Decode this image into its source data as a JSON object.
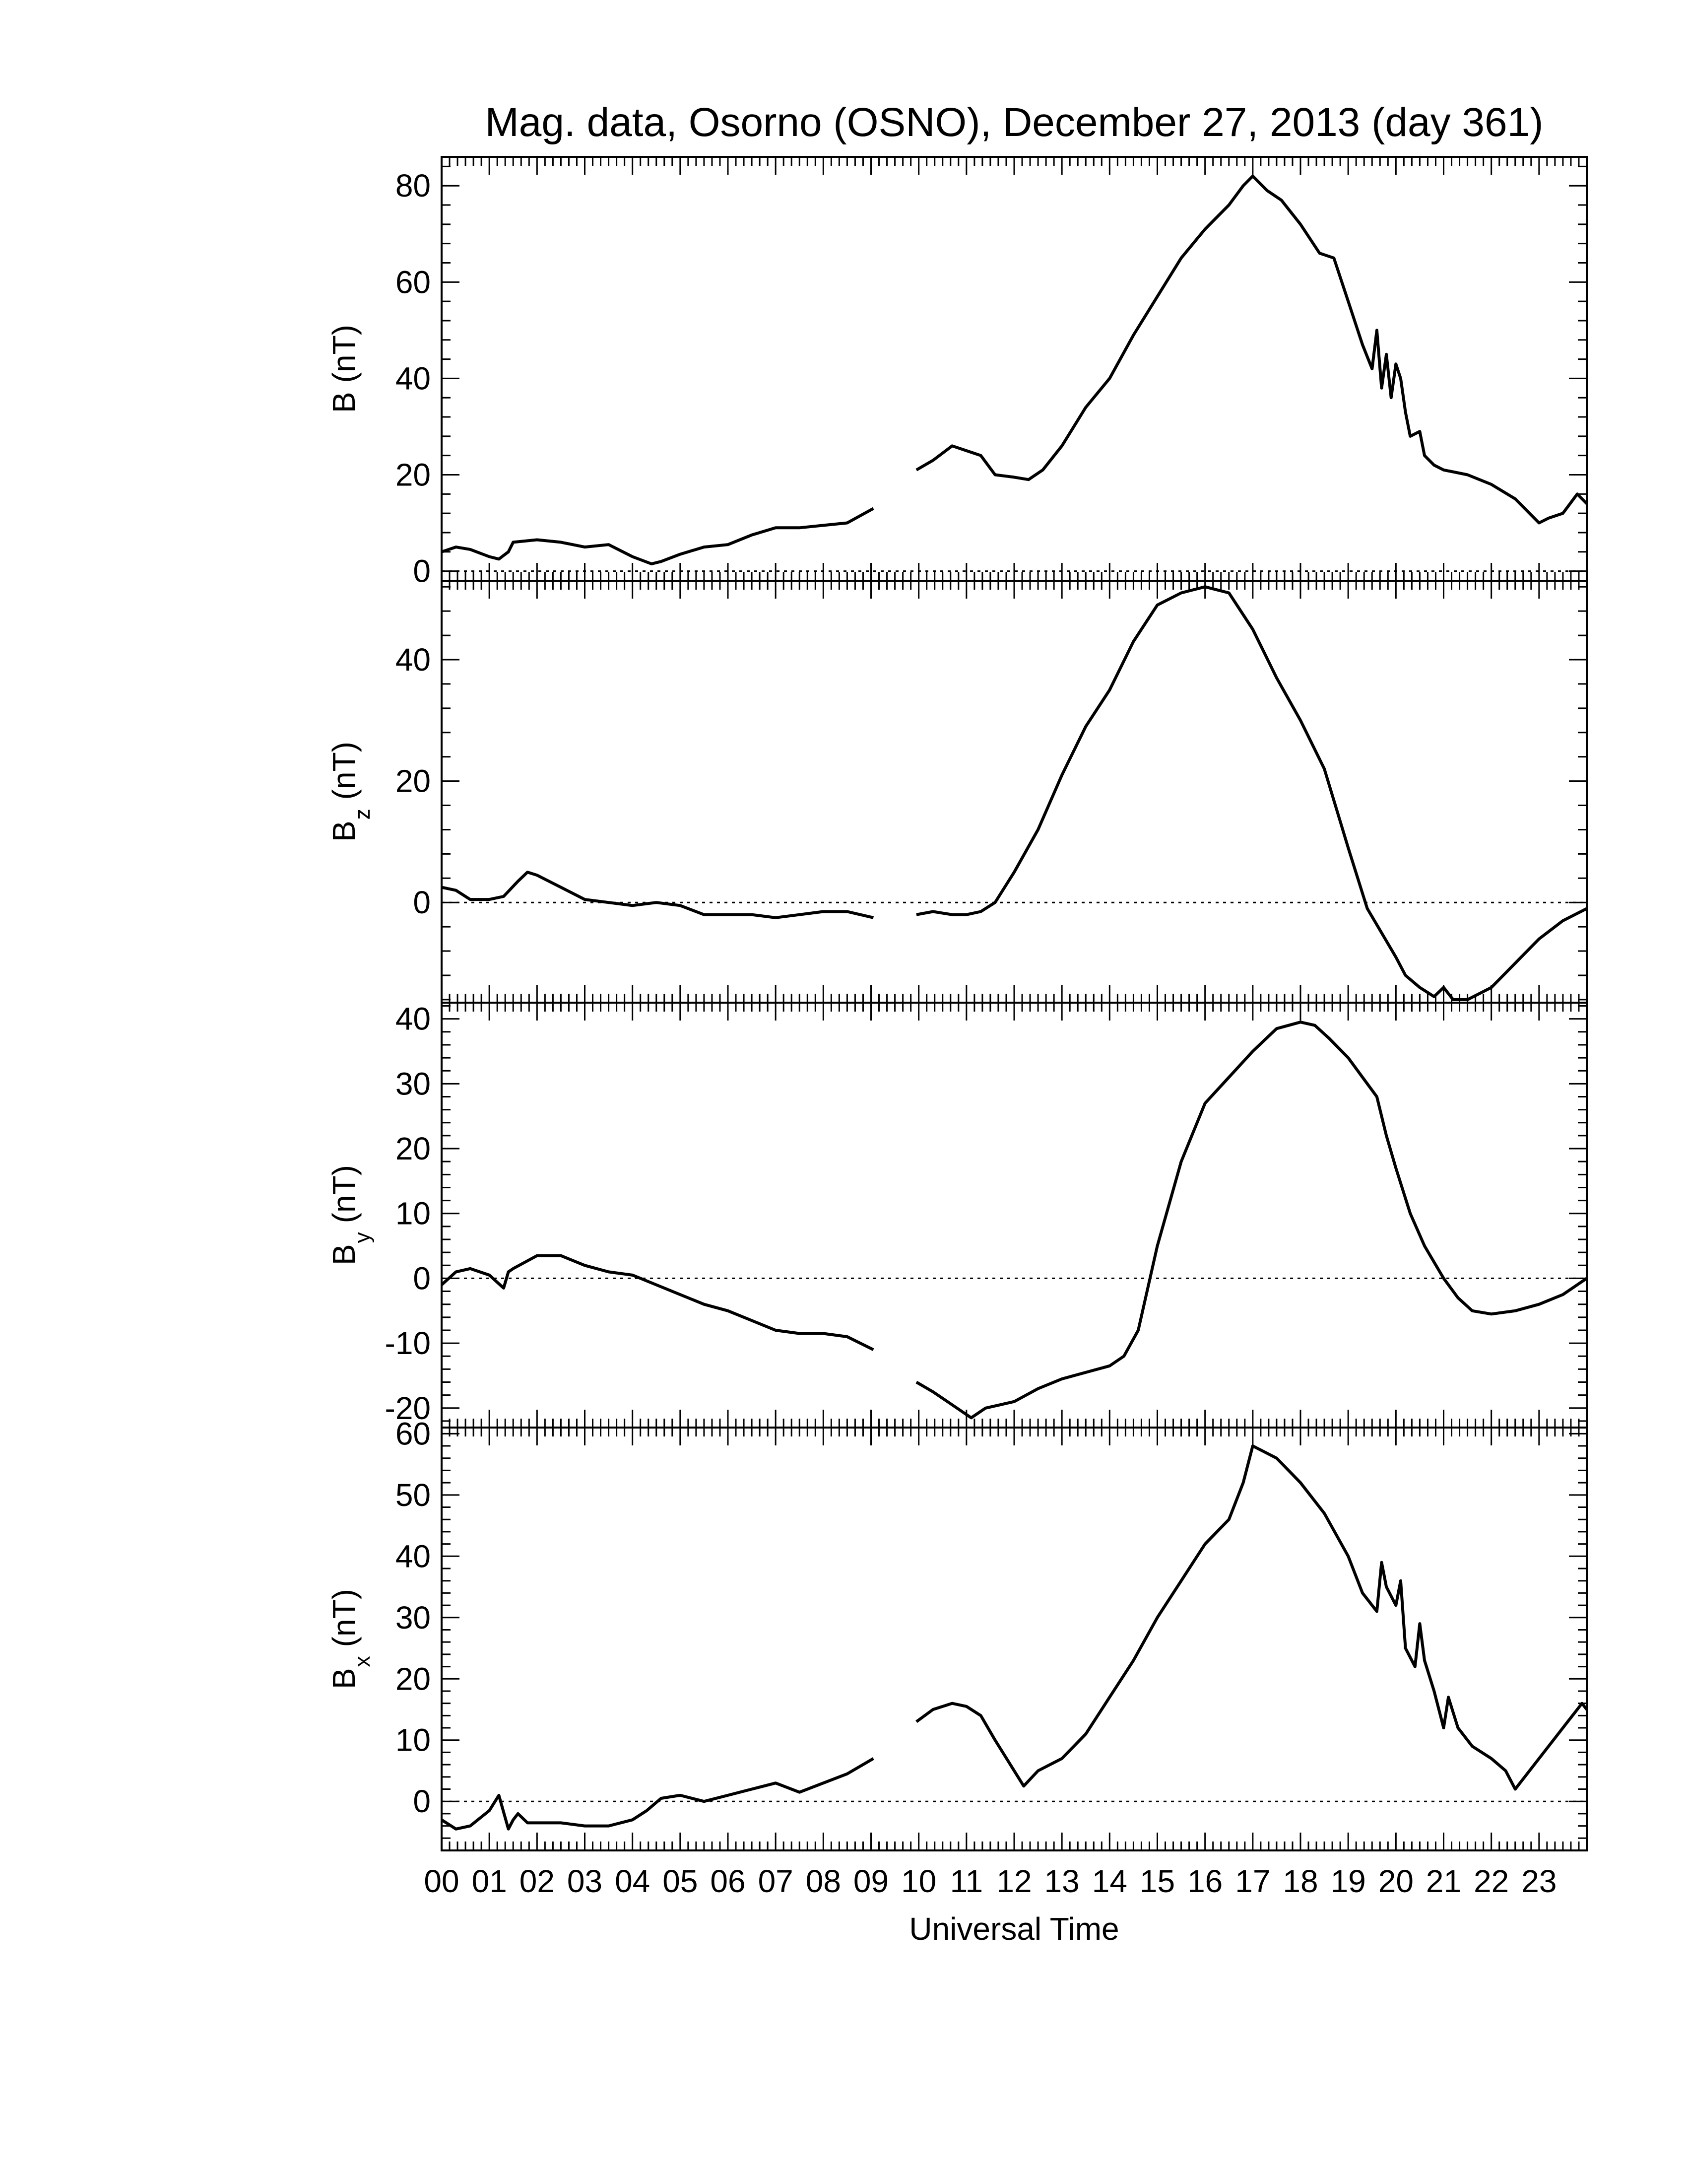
{
  "title": "Mag. data, Osorno (OSNO), December 27, 2013 (day 361)",
  "xlabel": "Universal Time",
  "x_tick_labels": [
    "00",
    "01",
    "02",
    "03",
    "04",
    "05",
    "06",
    "07",
    "08",
    "09",
    "10",
    "11",
    "12",
    "13",
    "14",
    "15",
    "16",
    "17",
    "18",
    "19",
    "20",
    "21",
    "22",
    "23"
  ],
  "chart_data": [
    {
      "type": "line",
      "ylabel_main": "B",
      "ylabel_sub": "",
      "ylabel_unit": "(nT)",
      "xlim": [
        0,
        24
      ],
      "ylim": [
        -2,
        86
      ],
      "yticks": [
        0,
        20,
        40,
        60,
        80
      ],
      "zero_line": true,
      "x": [
        0,
        0.3,
        0.6,
        1.0,
        1.2,
        1.4,
        1.5,
        2.0,
        2.5,
        3.0,
        3.5,
        4.0,
        4.4,
        4.6,
        5.0,
        5.5,
        6.0,
        6.5,
        7.0,
        7.5,
        8.0,
        8.5,
        9.05,
        null,
        9.95,
        10.3,
        10.7,
        11.0,
        11.3,
        11.6,
        12.0,
        12.3,
        12.6,
        13.0,
        13.5,
        14.0,
        14.5,
        15.0,
        15.5,
        16.0,
        16.5,
        16.8,
        17.0,
        17.3,
        17.6,
        18.0,
        18.4,
        18.7,
        19.0,
        19.3,
        19.5,
        19.6,
        19.7,
        19.8,
        19.9,
        20.0,
        20.1,
        20.2,
        20.3,
        20.5,
        20.6,
        20.8,
        21.0,
        21.5,
        22.0,
        22.5,
        22.8,
        23.0,
        23.2,
        23.5,
        23.8,
        24.0
      ],
      "values": [
        4,
        5,
        4.5,
        3,
        2.5,
        4,
        6,
        6.5,
        6,
        5,
        5.5,
        3,
        1.5,
        2,
        3.5,
        5,
        5.5,
        7.5,
        9,
        9,
        9.5,
        10,
        13,
        null,
        21,
        23,
        26,
        25,
        24,
        20,
        19.5,
        19,
        21,
        26,
        34,
        40,
        49,
        57,
        65,
        71,
        76,
        80,
        82,
        79,
        77,
        72,
        66,
        65,
        56,
        47,
        42,
        50,
        38,
        45,
        36,
        43,
        40,
        33,
        28,
        29,
        24,
        22,
        21,
        20,
        18,
        15,
        12,
        10,
        11,
        12,
        16,
        14
      ],
      "line_color": "#000000"
    },
    {
      "type": "line",
      "ylabel_main": "B",
      "ylabel_sub": "z",
      "ylabel_unit": "(nT)",
      "xlim": [
        0,
        24
      ],
      "ylim": [
        -16.5,
        53
      ],
      "yticks": [
        0,
        20,
        40
      ],
      "zero_line": true,
      "x": [
        0,
        0.3,
        0.6,
        1.0,
        1.3,
        1.6,
        1.8,
        2.0,
        2.5,
        3.0,
        3.5,
        4.0,
        4.5,
        5.0,
        5.5,
        6.0,
        6.5,
        7.0,
        7.5,
        8.0,
        8.5,
        9.05,
        null,
        9.95,
        10.3,
        10.7,
        11.0,
        11.3,
        11.6,
        12.0,
        12.5,
        13.0,
        13.5,
        14.0,
        14.5,
        15.0,
        15.5,
        16.0,
        16.5,
        17.0,
        17.5,
        18.0,
        18.5,
        19.0,
        19.4,
        19.7,
        20.0,
        20.2,
        20.5,
        20.8,
        21.0,
        21.2,
        21.5,
        22.0,
        22.5,
        23.0,
        23.5,
        24.0
      ],
      "values": [
        2.5,
        2,
        0.5,
        0.5,
        1,
        3.5,
        5,
        4.5,
        2.5,
        0.5,
        0,
        -0.5,
        0,
        -0.5,
        -2,
        -2,
        -2,
        -2.5,
        -2,
        -1.5,
        -1.5,
        -2.5,
        null,
        -2,
        -1.5,
        -2,
        -2,
        -1.5,
        0,
        5,
        12,
        21,
        29,
        35,
        43,
        49,
        51,
        52,
        51,
        45,
        37,
        30,
        22,
        9,
        -1,
        -5,
        -9,
        -12,
        -14,
        -15.5,
        -14,
        -16,
        -16,
        -14,
        -10,
        -6,
        -3,
        -1
      ],
      "line_color": "#000000"
    },
    {
      "type": "line",
      "ylabel_main": "B",
      "ylabel_sub": "y",
      "ylabel_unit": "(nT)",
      "xlim": [
        0,
        24
      ],
      "ylim": [
        -23,
        42.5
      ],
      "yticks": [
        -20,
        -10,
        0,
        10,
        20,
        30,
        40
      ],
      "zero_line": true,
      "x": [
        0,
        0.3,
        0.6,
        1.0,
        1.3,
        1.4,
        1.5,
        2.0,
        2.5,
        3.0,
        3.5,
        4.0,
        4.5,
        5.0,
        5.5,
        6.0,
        6.5,
        7.0,
        7.5,
        8.0,
        8.5,
        9.05,
        null,
        9.95,
        10.3,
        10.6,
        10.9,
        11.1,
        11.4,
        11.7,
        12.0,
        12.5,
        13.0,
        13.5,
        14.0,
        14.3,
        14.6,
        15.0,
        15.5,
        16.0,
        16.5,
        17.0,
        17.5,
        18.0,
        18.3,
        18.6,
        19.0,
        19.3,
        19.6,
        19.8,
        20.0,
        20.3,
        20.6,
        21.0,
        21.3,
        21.6,
        22.0,
        22.5,
        23.0,
        23.5,
        24.0
      ],
      "values": [
        -1,
        1,
        1.5,
        0.5,
        -1.5,
        1,
        1.5,
        3.5,
        3.5,
        2,
        1,
        0.5,
        -1,
        -2.5,
        -4,
        -5,
        -6.5,
        -8,
        -8.5,
        -8.5,
        -9,
        -11,
        null,
        -16,
        -17.5,
        -19,
        -20.5,
        -21.5,
        -20,
        -19.5,
        -19,
        -17,
        -15.5,
        -14.5,
        -13.5,
        -12,
        -8,
        5,
        18,
        27,
        31,
        35,
        38.5,
        39.5,
        39,
        37,
        34,
        31,
        28,
        22,
        17,
        10,
        5,
        0,
        -3,
        -5,
        -5.5,
        -5,
        -4,
        -2.5,
        0
      ],
      "line_color": "#000000"
    },
    {
      "type": "line",
      "ylabel_main": "B",
      "ylabel_sub": "x",
      "ylabel_unit": "(nT)",
      "xlim": [
        0,
        24
      ],
      "ylim": [
        -8,
        61
      ],
      "yticks": [
        0,
        10,
        20,
        30,
        40,
        50,
        60
      ],
      "zero_line": true,
      "x": [
        0,
        0.3,
        0.6,
        1.0,
        1.2,
        1.4,
        1.5,
        1.6,
        1.8,
        2.0,
        2.5,
        3.0,
        3.5,
        4.0,
        4.3,
        4.6,
        5.0,
        5.5,
        6.0,
        6.5,
        7.0,
        7.5,
        8.0,
        8.5,
        9.05,
        null,
        9.95,
        10.3,
        10.7,
        11.0,
        11.3,
        11.6,
        12.0,
        12.2,
        12.5,
        13.0,
        13.5,
        14.0,
        14.5,
        15.0,
        15.5,
        16.0,
        16.5,
        16.8,
        17.0,
        17.5,
        18.0,
        18.5,
        19.0,
        19.3,
        19.6,
        19.7,
        19.8,
        20.0,
        20.1,
        20.2,
        20.4,
        20.5,
        20.6,
        20.8,
        21.0,
        21.1,
        21.3,
        21.6,
        22.0,
        22.3,
        22.5,
        22.7,
        23.0,
        23.3,
        23.6,
        23.9,
        24.0
      ],
      "values": [
        -3,
        -4.5,
        -4,
        -1.5,
        1,
        -4.5,
        -3,
        -2,
        -3.5,
        -3.5,
        -3.5,
        -4,
        -4,
        -3,
        -1.5,
        0.5,
        1,
        0,
        1,
        2,
        3,
        1.5,
        3,
        4.5,
        7,
        null,
        13,
        15,
        16,
        15.5,
        14,
        10,
        5,
        2.5,
        5,
        7,
        11,
        17,
        23,
        30,
        36,
        42,
        46,
        52,
        58,
        56,
        52,
        47,
        40,
        34,
        31,
        39,
        35,
        32,
        36,
        25,
        22,
        29,
        23,
        18,
        12,
        17,
        12,
        9,
        7,
        5,
        2,
        4,
        7,
        10,
        13,
        16,
        15
      ],
      "line_color": "#000000"
    }
  ]
}
